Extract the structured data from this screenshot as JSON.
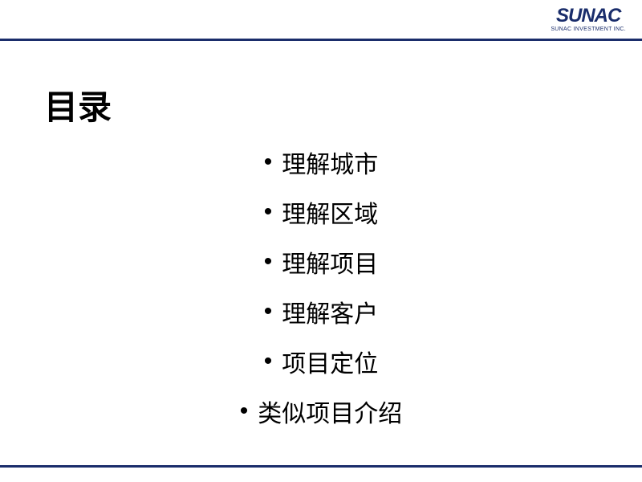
{
  "logo": {
    "main": "SUNAC",
    "sub": "SUNAC INVESTMENT INC."
  },
  "title": "目录",
  "items": [
    "理解城市",
    "理解区域",
    "理解项目",
    "理解客户",
    "项目定位",
    "类似项目介绍"
  ],
  "colors": {
    "brand": "#1a2d6b",
    "text": "#000000",
    "background": "#ffffff"
  },
  "typography": {
    "title_fontsize": 42,
    "item_fontsize": 30,
    "logo_main_fontsize": 24,
    "logo_sub_fontsize": 7
  }
}
